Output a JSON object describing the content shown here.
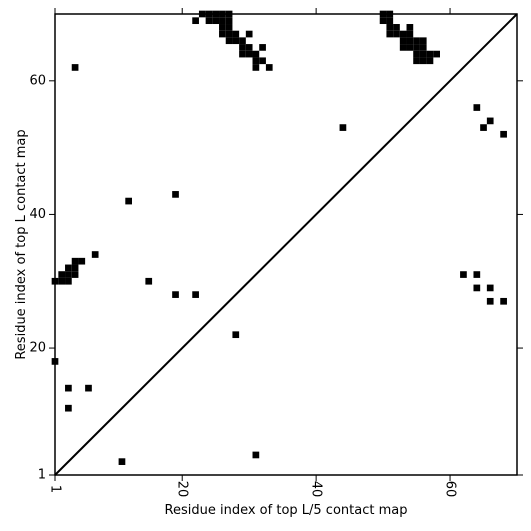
{
  "chart_data": {
    "type": "scatter",
    "title": "",
    "xlabel": "Residue index of top L/5 contact map",
    "ylabel": "Residue index of top L contact map",
    "xlim": [
      1,
      70
    ],
    "ylim": [
      1,
      70
    ],
    "xticks": [
      1,
      20,
      40,
      60
    ],
    "yticks": [
      1,
      20,
      40,
      60
    ],
    "grid": false,
    "diagonal": true,
    "marker": "square",
    "marker_color": "#000000",
    "series": [
      {
        "points": [
          [
            23,
            70
          ],
          [
            24,
            70
          ],
          [
            25,
            70
          ],
          [
            26,
            70
          ],
          [
            27,
            70
          ],
          [
            25,
            69
          ],
          [
            26,
            69
          ],
          [
            27,
            69
          ],
          [
            22,
            69
          ],
          [
            24,
            69
          ],
          [
            26,
            68
          ],
          [
            27,
            68
          ],
          [
            26,
            67
          ],
          [
            27,
            67
          ],
          [
            28,
            67
          ],
          [
            27,
            66
          ],
          [
            28,
            66
          ],
          [
            29,
            66
          ],
          [
            29,
            65
          ],
          [
            30,
            65
          ],
          [
            32,
            65
          ],
          [
            29,
            64
          ],
          [
            30,
            64
          ],
          [
            31,
            64
          ],
          [
            30,
            67
          ],
          [
            31,
            63
          ],
          [
            32,
            63
          ],
          [
            31,
            62
          ],
          [
            33,
            62
          ],
          [
            4,
            62
          ],
          [
            50,
            70
          ],
          [
            51,
            70
          ],
          [
            50,
            69
          ],
          [
            51,
            69
          ],
          [
            51,
            68
          ],
          [
            52,
            68
          ],
          [
            54,
            68
          ],
          [
            51,
            67
          ],
          [
            52,
            67
          ],
          [
            53,
            67
          ],
          [
            54,
            67
          ],
          [
            53,
            66
          ],
          [
            54,
            66
          ],
          [
            55,
            66
          ],
          [
            56,
            66
          ],
          [
            53,
            65
          ],
          [
            54,
            65
          ],
          [
            55,
            65
          ],
          [
            56,
            65
          ],
          [
            55,
            64
          ],
          [
            56,
            64
          ],
          [
            57,
            64
          ],
          [
            58,
            64
          ],
          [
            55,
            63
          ],
          [
            56,
            63
          ],
          [
            57,
            63
          ],
          [
            44,
            53
          ],
          [
            64,
            56
          ],
          [
            66,
            54
          ],
          [
            65,
            53
          ],
          [
            68,
            52
          ],
          [
            12,
            42
          ],
          [
            19,
            43
          ],
          [
            1,
            30
          ],
          [
            2,
            30
          ],
          [
            3,
            30
          ],
          [
            2,
            31
          ],
          [
            3,
            31
          ],
          [
            4,
            31
          ],
          [
            3,
            32
          ],
          [
            4,
            32
          ],
          [
            4,
            33
          ],
          [
            5,
            33
          ],
          [
            7,
            34
          ],
          [
            15,
            30
          ],
          [
            19,
            28
          ],
          [
            22,
            28
          ],
          [
            28,
            22
          ],
          [
            62,
            31
          ],
          [
            64,
            31
          ],
          [
            64,
            29
          ],
          [
            66,
            29
          ],
          [
            66,
            27
          ],
          [
            68,
            27
          ],
          [
            1,
            18
          ],
          [
            3,
            14
          ],
          [
            6,
            14
          ],
          [
            3,
            11
          ],
          [
            11,
            3
          ],
          [
            31,
            4
          ]
        ]
      }
    ]
  }
}
